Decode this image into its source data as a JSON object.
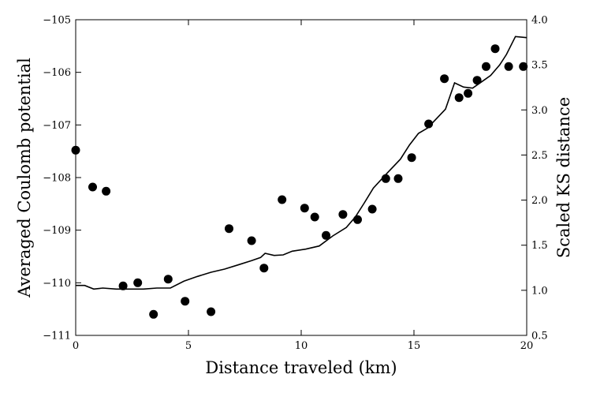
{
  "chart_data": {
    "type": "line+scatter",
    "xlabel": "Distance traveled (km)",
    "ylabel_left": "Averaged Coulomb potential",
    "ylabel_right": "Scaled KS distance",
    "xlim": [
      0,
      20
    ],
    "ylim_left": [
      -111,
      -105
    ],
    "ylim_right": [
      0.5,
      4.0
    ],
    "x_ticks": [
      0,
      5,
      10,
      15,
      20
    ],
    "x_tick_labels": [
      "0",
      "5",
      "10",
      "15",
      "20"
    ],
    "y_left_ticks": [
      -111,
      -110,
      -109,
      -108,
      -107,
      -106,
      -105
    ],
    "y_left_tick_labels": [
      "−111",
      "−110",
      "−109",
      "−108",
      "−107",
      "−106",
      "−105"
    ],
    "y_right_ticks": [
      0.5,
      1.0,
      1.5,
      2.0,
      2.5,
      3.0,
      3.5,
      4.0
    ],
    "y_right_tick_labels": [
      "0.5",
      "1.0",
      "1.5",
      "2.0",
      "2.5",
      "3.0",
      "3.5",
      "4.0"
    ],
    "grid": false,
    "line_series": {
      "axis": "left",
      "color": "#000000",
      "x": [
        0,
        0.4,
        0.8,
        1.2,
        1.8,
        2.4,
        3.0,
        3.6,
        4.2,
        4.8,
        5.4,
        6.0,
        6.6,
        7.2,
        7.8,
        8.2,
        8.4,
        8.8,
        9.2,
        9.6,
        10.2,
        10.8,
        11.4,
        12.0,
        12.4,
        12.8,
        13.2,
        13.8,
        14.4,
        14.8,
        15.2,
        15.6,
        16.0,
        16.4,
        16.8,
        17.2,
        17.6,
        18.0,
        18.4,
        18.8,
        19.1,
        19.5,
        20.0
      ],
      "y": [
        -110.05,
        -110.05,
        -110.12,
        -110.1,
        -110.12,
        -110.12,
        -110.12,
        -110.1,
        -110.1,
        -109.97,
        -109.88,
        -109.8,
        -109.74,
        -109.66,
        -109.58,
        -109.52,
        -109.44,
        -109.48,
        -109.47,
        -109.4,
        -109.36,
        -109.3,
        -109.11,
        -108.95,
        -108.75,
        -108.48,
        -108.2,
        -107.92,
        -107.65,
        -107.38,
        -107.16,
        -107.06,
        -106.88,
        -106.7,
        -106.2,
        -106.28,
        -106.3,
        -106.18,
        -106.06,
        -105.86,
        -105.66,
        -105.32,
        -105.34
      ]
    },
    "scatter_series": {
      "axis": "left",
      "color": "#000000",
      "x": [
        0.0,
        0.75,
        1.35,
        2.1,
        2.75,
        3.45,
        4.1,
        4.85,
        6.0,
        6.8,
        7.8,
        8.35,
        9.15,
        10.15,
        10.6,
        11.1,
        11.85,
        12.5,
        13.15,
        13.75,
        14.3,
        14.9,
        15.65,
        16.35,
        17.0,
        17.4,
        17.8,
        18.2,
        18.6,
        19.2,
        19.85
      ],
      "y": [
        -107.48,
        -108.18,
        -108.26,
        -110.06,
        -110.0,
        -110.6,
        -109.93,
        -110.35,
        -110.55,
        -108.97,
        -109.2,
        -109.72,
        -108.42,
        -108.58,
        -108.75,
        -109.1,
        -108.7,
        -108.8,
        -108.6,
        -108.02,
        -108.02,
        -107.62,
        -106.98,
        -106.12,
        -106.48,
        -106.4,
        -106.15,
        -105.89,
        -105.55,
        -105.89,
        -105.89
      ]
    }
  }
}
